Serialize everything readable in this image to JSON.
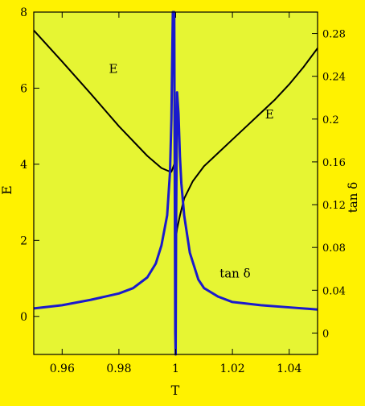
{
  "colors": {
    "page_background": "#FFF200",
    "plot_background": "#E6F533",
    "E_series": "#000000",
    "tan_delta_series": "#1A1ACC",
    "axes": "#000000"
  },
  "chart_data": {
    "type": "line",
    "xlabel": "T",
    "ylabel_left": "E",
    "ylabel_right": "tan δ",
    "xlim": [
      0.95,
      1.05
    ],
    "ylim_left": [
      -1,
      8
    ],
    "ylim_right": [
      -0.02,
      0.3
    ],
    "x_ticks": [
      0.96,
      0.98,
      1.0,
      1.02,
      1.04
    ],
    "x_tick_labels": [
      "0.96",
      "0.98",
      "1",
      "1.02",
      "1.04"
    ],
    "y_left_ticks": [
      0,
      2,
      4,
      6,
      8
    ],
    "y_left_tick_labels": [
      "0",
      "2",
      "4",
      "6",
      "8"
    ],
    "y_right_ticks": [
      0,
      0.04,
      0.08,
      0.12,
      0.16,
      0.2,
      0.24,
      0.28
    ],
    "y_right_tick_labels": [
      "0",
      "0.04",
      "0.08",
      "0.12",
      "0.16",
      "0.2",
      "0.24",
      "0.28"
    ],
    "grid": false,
    "annotations": [
      {
        "text": "E",
        "x": 0.9765,
        "y": 6.4,
        "axis": "left"
      },
      {
        "text": "E",
        "x": 1.0315,
        "y": 5.2,
        "axis": "left"
      },
      {
        "text": "tan δ",
        "x": 1.0155,
        "y": 0.052,
        "axis": "right"
      }
    ],
    "series": [
      {
        "axis": "left",
        "color": "#000000",
        "stroke_width": 2,
        "points": [
          [
            0.95,
            7.52
          ],
          [
            0.96,
            6.7
          ],
          [
            0.97,
            5.86
          ],
          [
            0.98,
            5.0
          ],
          [
            0.99,
            4.22
          ],
          [
            0.995,
            3.9
          ],
          [
            0.9975,
            3.82
          ],
          [
            0.9985,
            3.8
          ],
          [
            0.9995,
            4.0
          ],
          [
            1.0,
            2.0
          ],
          [
            1.0005,
            2.3
          ],
          [
            1.0015,
            2.65
          ],
          [
            1.003,
            3.1
          ],
          [
            1.006,
            3.55
          ],
          [
            1.01,
            3.95
          ],
          [
            1.015,
            4.3
          ],
          [
            1.02,
            4.65
          ],
          [
            1.025,
            5.0
          ],
          [
            1.03,
            5.35
          ],
          [
            1.035,
            5.7
          ],
          [
            1.04,
            6.1
          ],
          [
            1.045,
            6.55
          ],
          [
            1.05,
            7.05
          ]
        ]
      },
      {
        "axis": "right",
        "color": "#1A1ACC",
        "stroke_width": 3,
        "points": [
          [
            0.95,
            0.023
          ],
          [
            0.96,
            0.026
          ],
          [
            0.97,
            0.031
          ],
          [
            0.98,
            0.037
          ],
          [
            0.985,
            0.042
          ],
          [
            0.99,
            0.052
          ],
          [
            0.993,
            0.065
          ],
          [
            0.995,
            0.082
          ],
          [
            0.997,
            0.11
          ],
          [
            0.998,
            0.15
          ],
          [
            0.9985,
            0.2
          ],
          [
            0.999,
            0.3
          ],
          [
            0.9995,
            0.3
          ],
          [
            0.99985,
            0.0
          ],
          [
            1.0,
            -0.02
          ],
          [
            1.00015,
            0.1
          ],
          [
            1.0005,
            0.225
          ],
          [
            1.001,
            0.205
          ],
          [
            1.0015,
            0.165
          ],
          [
            1.002,
            0.14
          ],
          [
            1.003,
            0.11
          ],
          [
            1.005,
            0.075
          ],
          [
            1.008,
            0.05
          ],
          [
            1.01,
            0.042
          ],
          [
            1.015,
            0.034
          ],
          [
            1.02,
            0.029
          ],
          [
            1.03,
            0.026
          ],
          [
            1.04,
            0.024
          ],
          [
            1.05,
            0.022
          ]
        ]
      }
    ]
  }
}
